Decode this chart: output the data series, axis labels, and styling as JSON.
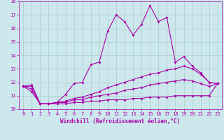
{
  "xlabel": "Windchill (Refroidissement éolien,°C)",
  "background_color": "#cce8ec",
  "line_color": "#aa00aa",
  "grid_color": "#aacccc",
  "xlim": [
    -0.5,
    23.5
  ],
  "ylim": [
    10,
    18
  ],
  "yticks": [
    10,
    11,
    12,
    13,
    14,
    15,
    16,
    17,
    18
  ],
  "xticks": [
    0,
    1,
    2,
    3,
    4,
    5,
    6,
    7,
    8,
    9,
    10,
    11,
    12,
    13,
    14,
    15,
    16,
    17,
    18,
    19,
    20,
    21,
    22,
    23
  ],
  "series1_x": [
    0,
    1,
    2,
    3,
    4,
    5,
    6,
    7,
    8,
    9,
    10,
    11,
    12,
    13,
    14,
    15,
    16,
    17,
    18,
    19,
    20,
    21,
    22,
    23
  ],
  "series1_y": [
    11.7,
    11.8,
    10.4,
    10.4,
    10.5,
    11.1,
    11.9,
    12.0,
    13.3,
    13.5,
    15.8,
    17.0,
    16.5,
    15.5,
    16.3,
    17.7,
    16.5,
    16.8,
    13.5,
    13.9,
    13.2,
    12.7,
    12.0,
    11.9
  ],
  "series2_x": [
    0,
    1,
    2,
    3,
    4,
    5,
    6,
    7,
    8,
    9,
    10,
    11,
    12,
    13,
    14,
    15,
    16,
    17,
    18,
    19,
    20,
    21,
    22,
    23
  ],
  "series2_y": [
    11.7,
    11.7,
    10.4,
    10.4,
    10.5,
    10.6,
    10.8,
    10.9,
    11.1,
    11.3,
    11.6,
    11.8,
    12.0,
    12.2,
    12.4,
    12.6,
    12.7,
    12.9,
    13.0,
    13.2,
    13.0,
    12.6,
    12.0,
    11.9
  ],
  "series3_x": [
    0,
    1,
    2,
    3,
    4,
    5,
    6,
    7,
    8,
    9,
    10,
    11,
    12,
    13,
    14,
    15,
    16,
    17,
    18,
    19,
    20,
    21,
    22,
    23
  ],
  "series3_y": [
    11.7,
    11.5,
    10.4,
    10.4,
    10.5,
    10.5,
    10.7,
    10.7,
    10.9,
    11.0,
    11.1,
    11.2,
    11.4,
    11.5,
    11.6,
    11.8,
    11.9,
    12.0,
    12.1,
    12.2,
    12.1,
    11.9,
    11.7,
    11.9
  ],
  "series4_x": [
    0,
    1,
    2,
    3,
    4,
    5,
    6,
    7,
    8,
    9,
    10,
    11,
    12,
    13,
    14,
    15,
    16,
    17,
    18,
    19,
    20,
    21,
    22,
    23
  ],
  "series4_y": [
    11.7,
    11.3,
    10.4,
    10.4,
    10.4,
    10.4,
    10.5,
    10.5,
    10.6,
    10.6,
    10.7,
    10.7,
    10.7,
    10.8,
    10.8,
    10.9,
    10.9,
    10.9,
    11.0,
    11.0,
    11.0,
    11.0,
    11.0,
    11.9
  ],
  "xlabel_fontsize": 5.5,
  "tick_fontsize": 5,
  "linewidth": 0.8,
  "markersize": 2.0
}
